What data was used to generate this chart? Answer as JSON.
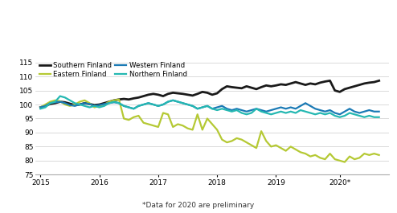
{
  "footnote": "*Data for 2020 are preliminary",
  "ylim": [
    75,
    116
  ],
  "yticks": [
    75,
    80,
    85,
    90,
    95,
    100,
    105,
    110,
    115
  ],
  "xtick_positions": [
    2015.0,
    2016.0,
    2017.0,
    2018.0,
    2019.0,
    2020.083
  ],
  "xtick_labels": [
    "2015",
    "2016",
    "2017",
    "2018",
    "2019",
    "2020*"
  ],
  "xlim": [
    2014.92,
    2020.92
  ],
  "legend": {
    "Southern Finland": {
      "color": "#1a1a1a",
      "lw": 2.0
    },
    "Eastern Finland": {
      "color": "#b5c934",
      "lw": 1.6
    },
    "Western Finland": {
      "color": "#1b7ab5",
      "lw": 1.6
    },
    "Northern Finland": {
      "color": "#25b8b2",
      "lw": 1.6
    }
  },
  "southern_finland": [
    99.0,
    99.5,
    100.2,
    100.5,
    101.0,
    100.8,
    100.3,
    99.8,
    100.0,
    100.5,
    100.2,
    99.8,
    100.0,
    100.5,
    101.0,
    101.5,
    101.8,
    102.0,
    101.8,
    102.2,
    102.5,
    103.0,
    103.5,
    103.8,
    103.5,
    103.0,
    103.8,
    104.2,
    104.0,
    103.8,
    103.5,
    103.2,
    103.8,
    104.5,
    104.2,
    103.5,
    104.0,
    105.5,
    106.5,
    106.2,
    106.0,
    105.8,
    106.5,
    106.0,
    105.5,
    106.2,
    106.8,
    106.5,
    106.8,
    107.2,
    107.0,
    107.5,
    108.0,
    107.5,
    107.0,
    107.5,
    107.2,
    107.8,
    108.2,
    108.5,
    105.0,
    104.5,
    105.5,
    106.0,
    106.5,
    107.0,
    107.5,
    107.8,
    108.0,
    108.5
  ],
  "eastern_finland": [
    99.0,
    100.0,
    101.0,
    101.5,
    101.2,
    100.0,
    99.5,
    100.0,
    101.0,
    101.5,
    100.5,
    99.0,
    99.5,
    100.0,
    101.0,
    101.5,
    101.8,
    95.0,
    94.5,
    95.5,
    96.0,
    93.5,
    93.0,
    92.5,
    92.0,
    97.0,
    96.5,
    92.0,
    93.0,
    92.5,
    91.5,
    91.0,
    96.5,
    91.0,
    95.0,
    93.0,
    91.0,
    87.5,
    86.5,
    87.0,
    88.0,
    87.5,
    86.5,
    85.5,
    84.5,
    90.5,
    87.0,
    85.0,
    85.5,
    84.5,
    83.5,
    85.0,
    84.0,
    83.0,
    82.5,
    81.5,
    82.0,
    81.0,
    80.5,
    82.5,
    80.5,
    80.0,
    79.5,
    81.5,
    80.5,
    81.0,
    82.5,
    82.0,
    82.5,
    82.0
  ],
  "western_finland": [
    99.0,
    99.5,
    100.5,
    100.8,
    101.0,
    100.5,
    99.8,
    99.5,
    100.0,
    100.5,
    100.2,
    99.5,
    99.8,
    100.2,
    100.5,
    100.8,
    100.5,
    99.5,
    99.0,
    98.5,
    99.5,
    100.0,
    100.5,
    100.0,
    99.5,
    100.0,
    101.0,
    101.5,
    101.0,
    100.5,
    100.0,
    99.5,
    98.5,
    99.0,
    99.5,
    98.5,
    99.0,
    99.5,
    98.5,
    98.0,
    98.5,
    98.0,
    97.5,
    98.0,
    98.5,
    98.0,
    97.5,
    98.0,
    98.5,
    99.0,
    98.5,
    99.0,
    98.5,
    99.5,
    100.5,
    99.5,
    98.5,
    98.0,
    97.5,
    98.0,
    97.0,
    96.5,
    97.5,
    98.5,
    97.5,
    97.0,
    97.5,
    98.0,
    97.5,
    97.5
  ],
  "northern_finland": [
    98.5,
    99.0,
    100.5,
    101.0,
    103.0,
    102.5,
    101.5,
    100.5,
    100.0,
    99.5,
    99.0,
    99.5,
    99.0,
    99.5,
    100.5,
    101.0,
    100.5,
    99.5,
    99.0,
    98.5,
    99.5,
    100.0,
    100.5,
    100.0,
    99.5,
    100.0,
    101.0,
    101.5,
    101.0,
    100.5,
    100.0,
    99.5,
    98.5,
    99.0,
    99.5,
    98.5,
    98.0,
    98.5,
    98.0,
    97.5,
    98.0,
    97.0,
    96.5,
    97.0,
    98.5,
    97.5,
    97.0,
    96.5,
    97.0,
    97.5,
    97.0,
    97.5,
    97.0,
    98.0,
    97.5,
    97.0,
    96.5,
    97.0,
    96.5,
    97.0,
    96.0,
    95.5,
    96.0,
    97.0,
    96.5,
    96.0,
    95.5,
    96.0,
    95.5,
    95.5
  ]
}
